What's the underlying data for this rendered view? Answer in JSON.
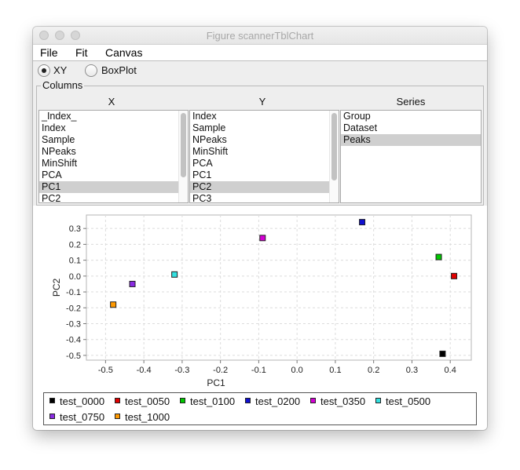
{
  "window": {
    "title": "Figure scannerTblChart"
  },
  "menu": [
    {
      "label": "File"
    },
    {
      "label": "Fit"
    },
    {
      "label": "Canvas"
    }
  ],
  "mode": {
    "options": [
      {
        "label": "XY",
        "checked": true
      },
      {
        "label": "BoxPlot",
        "checked": false
      }
    ]
  },
  "columns": {
    "title": "Columns",
    "x": {
      "header": "X",
      "items": [
        "_Index_",
        "Index",
        "Sample",
        "NPeaks",
        "MinShift",
        "PCA",
        "PC1",
        "PC2"
      ],
      "selected": "PC1"
    },
    "y": {
      "header": "Y",
      "items": [
        "Index",
        "Sample",
        "NPeaks",
        "MinShift",
        "PCA",
        "PC1",
        "PC2",
        "PC3"
      ],
      "selected": "PC2"
    },
    "series": {
      "header": "Series",
      "items": [
        "Group",
        "Dataset",
        "Peaks"
      ],
      "selected": "Peaks"
    }
  },
  "chart_data": {
    "type": "scatter",
    "xlabel": "PC1",
    "ylabel": "PC2",
    "xlim": [
      -0.55,
      0.455
    ],
    "ylim": [
      -0.53,
      0.385
    ],
    "xticks": [
      -0.5,
      -0.4,
      -0.3,
      -0.2,
      -0.1,
      0.0,
      0.1,
      0.2,
      0.3,
      0.4
    ],
    "xtick_labels": [
      "-0.5",
      "-0.4",
      "-0.3",
      "-0.2",
      "-0.1",
      "0.0",
      "0.1",
      "0.2",
      "0.3",
      "0.4"
    ],
    "yticks": [
      0.3,
      0.2,
      0.1,
      0.0,
      -0.1,
      -0.2,
      -0.3,
      -0.4,
      -0.5
    ],
    "ytick_labels": [
      "0.3",
      "0.2",
      "0.1",
      "0.0",
      "-0.1",
      "-0.2",
      "-0.3",
      "-0.4",
      "-0.5"
    ],
    "grid": true,
    "legend_placement": "bottom",
    "series": [
      {
        "name": "test_0000",
        "color": "#000000",
        "points": [
          [
            0.38,
            -0.49
          ]
        ]
      },
      {
        "name": "test_0050",
        "color": "#e00000",
        "points": [
          [
            0.41,
            0.0
          ]
        ]
      },
      {
        "name": "test_0100",
        "color": "#00c800",
        "points": [
          [
            0.37,
            0.12
          ]
        ]
      },
      {
        "name": "test_0200",
        "color": "#1010d0",
        "points": [
          [
            0.17,
            0.34
          ]
        ]
      },
      {
        "name": "test_0350",
        "color": "#d400d4",
        "points": [
          [
            -0.09,
            0.24
          ]
        ]
      },
      {
        "name": "test_0500",
        "color": "#33e0e0",
        "points": [
          [
            -0.32,
            0.01
          ]
        ]
      },
      {
        "name": "test_0750",
        "color": "#8a2be2",
        "points": [
          [
            -0.43,
            -0.05
          ]
        ]
      },
      {
        "name": "test_1000",
        "color": "#ff9900",
        "points": [
          [
            -0.48,
            -0.18
          ]
        ]
      }
    ]
  }
}
